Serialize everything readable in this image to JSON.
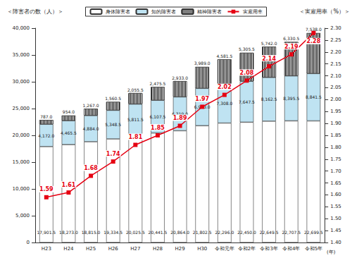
{
  "chart_data": {
    "type": "bar",
    "categories": [
      "H23",
      "H24",
      "H25",
      "H26",
      "H27",
      "H28",
      "H29",
      "H30",
      "令和元年",
      "令和2年",
      "令和3年",
      "令和4年",
      "令和5年"
    ],
    "series": [
      {
        "name": "身体障害者",
        "type": "bar",
        "color": "#ffffff",
        "values": [
          17901.5,
          18273.0,
          18815.0,
          19334.5,
          20025.5,
          20441.5,
          20864.0,
          21802.5,
          22296.0,
          22450.0,
          22649.5,
          22707.5,
          22699.5
        ],
        "value_labels": [
          "17,901.5",
          "18,273.0",
          "18,815.0",
          "19,334.5",
          "20,025.5",
          "20,441.5",
          "20,864.0",
          "21,802.5",
          "22,296.0",
          "22,450.0",
          "22,649.5",
          "22,707.5",
          "22,699.5"
        ]
      },
      {
        "name": "知的障害者",
        "type": "bar",
        "color": "#bfe3f2",
        "values": [
          4172.0,
          4465.5,
          4884.0,
          5348.5,
          5811.5,
          6107.5,
          6319.0,
          6973.0,
          7308.0,
          7647.5,
          8162.5,
          8395.5,
          8841.5
        ],
        "value_labels": [
          "4,172.0",
          "4,465.5",
          "4,884.0",
          "5,348.5",
          "5,811.5",
          "6,107.5",
          "6,319.0",
          "6,973.0",
          "7,308.0",
          "7,647.5",
          "8,162.5",
          "8,395.5",
          "8,841.5"
        ]
      },
      {
        "name": "精神障害者",
        "type": "bar",
        "color": "#000000",
        "values": [
          787.0,
          954.0,
          1267.0,
          1560.5,
          2055.5,
          2475.5,
          2933.0,
          3989.0,
          4581.5,
          5305.5,
          5742.0,
          6330.5,
          7538.0
        ],
        "value_labels": [
          "787.0",
          "954.0",
          "1,267.0",
          "1,560.5",
          "2,055.5",
          "2,475.5",
          "2,933.0",
          "3,989.0",
          "4,581.5",
          "5,305.5",
          "5,742.0",
          "6,330.5",
          "7,538.0"
        ]
      },
      {
        "name": "実雇用率",
        "type": "line",
        "axis": "y2",
        "color": "#e60012",
        "marker": "square",
        "line_style": "solid",
        "values": [
          1.59,
          1.61,
          1.68,
          1.74,
          1.81,
          1.85,
          1.89,
          1.97,
          2.02,
          2.08,
          2.14,
          2.19,
          2.28
        ]
      }
    ],
    "ylabel": "＜障害者の数（人）＞",
    "y2label": "＜実雇用率（%）＞",
    "xlabel": "(年)",
    "ylim": [
      0,
      40000
    ],
    "yticks": [
      0,
      {
        "value": 5000,
        "label": "5,000"
      },
      {
        "value": 10000,
        "label": "10,000"
      },
      {
        "value": 15000,
        "label": "15,000"
      },
      {
        "value": 20000,
        "label": "20,000"
      },
      {
        "value": 25000,
        "label": "25,000"
      },
      {
        "value": 30000,
        "label": "30,000"
      },
      {
        "value": 35000,
        "label": "35,000"
      },
      {
        "value": 40000,
        "label": "40,000"
      }
    ],
    "y2lim": [
      1.4,
      2.3
    ],
    "y2ticks": [
      {
        "value": 1.4,
        "label": "1.40"
      },
      1.45,
      {
        "value": 1.5,
        "label": "1.50"
      },
      1.55,
      {
        "value": 1.6,
        "label": "1.60"
      },
      1.65,
      {
        "value": 1.7,
        "label": "1.70"
      },
      1.75,
      {
        "value": 1.8,
        "label": "1.80"
      },
      1.85,
      {
        "value": 1.9,
        "label": "1.90"
      },
      1.95,
      {
        "value": 2.0,
        "label": "2.00"
      },
      2.05,
      {
        "value": 2.1,
        "label": "2.10"
      },
      2.15,
      {
        "value": 2.2,
        "label": "2.20"
      },
      2.25,
      {
        "value": 2.3,
        "label": "2.30"
      }
    ],
    "stacked": true,
    "data_labels": true,
    "legend": "top",
    "grid": false
  }
}
